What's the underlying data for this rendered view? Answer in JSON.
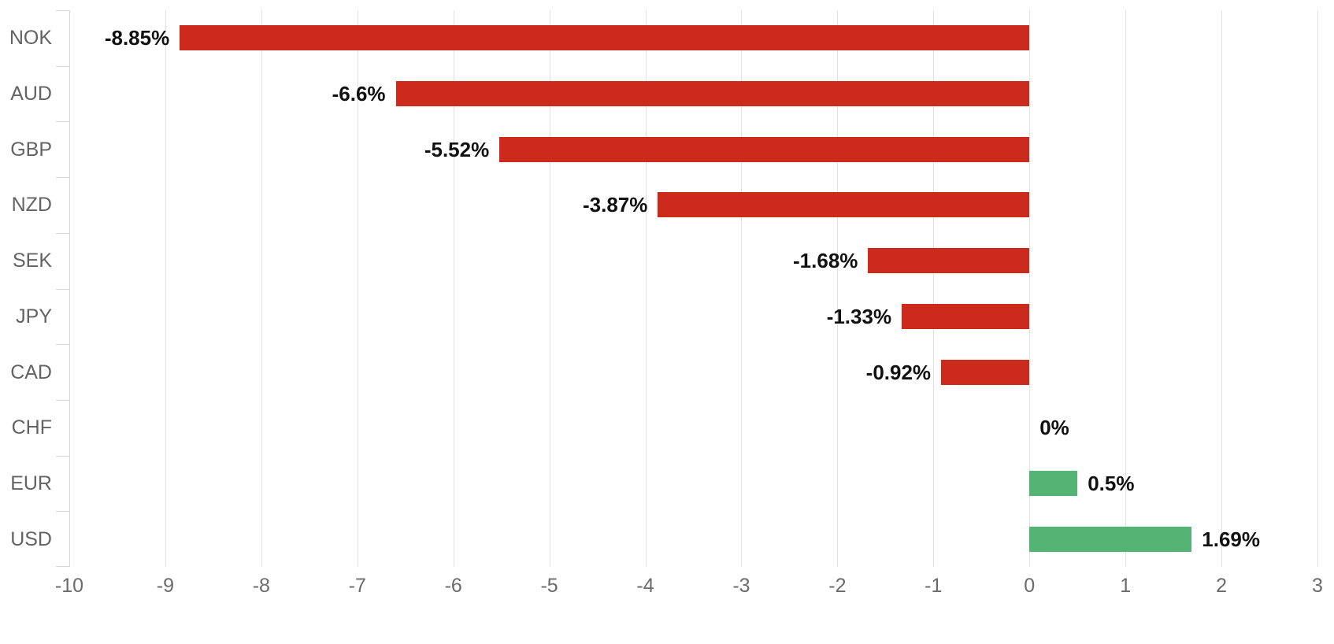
{
  "chart_data": {
    "type": "bar",
    "orientation": "horizontal",
    "categories": [
      "NOK",
      "AUD",
      "GBP",
      "NZD",
      "SEK",
      "JPY",
      "CAD",
      "CHF",
      "EUR",
      "USD"
    ],
    "values": [
      -8.85,
      -6.6,
      -5.52,
      -3.87,
      -1.68,
      -1.33,
      -0.92,
      0,
      0.5,
      1.69
    ],
    "value_labels": [
      "-8.85%",
      "-6.6%",
      "-5.52%",
      "-3.87%",
      "-1.68%",
      "-1.33%",
      "-0.92%",
      "0%",
      "0.5%",
      "1.69%"
    ],
    "xlim": [
      -10,
      3
    ],
    "x_ticks": [
      -10,
      -9,
      -8,
      -7,
      -6,
      -5,
      -4,
      -3,
      -2,
      -1,
      0,
      1,
      2,
      3
    ],
    "x_tick_labels": [
      "-10",
      "-9",
      "-8",
      "-7",
      "-6",
      "-5",
      "-4",
      "-3",
      "-2",
      "-1",
      "0",
      "1",
      "2",
      "3"
    ],
    "grid": "vertical-only",
    "legend": "none",
    "colors": {
      "negative_bar": "#cd2a1e",
      "positive_bar": "#54b474",
      "gridline": "#e1e1e1",
      "axis_line": "#d6d6d6",
      "category_label": "#636363",
      "x_tick_label": "#6b6b6b",
      "value_label": "#111111",
      "background": "#ffffff"
    }
  }
}
